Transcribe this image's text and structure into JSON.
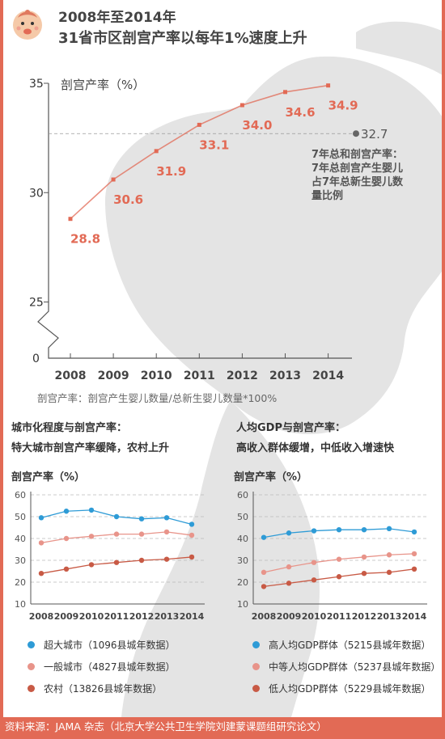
{
  "header": {
    "title_line1": "2008年至2014年",
    "title_line2": "31省市区剖宫产率以每年1%速度上升"
  },
  "colors": {
    "accent": "#e26a55",
    "blue": "#2e9bd6",
    "pink": "#e8948a",
    "dark_red": "#c85a45",
    "silhouette": "#e4e4e4"
  },
  "main_chart": {
    "footnote": "剖宫产率：剖宫产生婴儿数量/总新生婴儿数量*100%",
    "annotation": [
      "7年总和剖宫产率：",
      "7年总剖宫产生婴儿",
      "占7年总新生婴儿数",
      "量比例"
    ],
    "avg_label": "32.7"
  },
  "urban": {
    "title_line1": "城市化程度与剖宫产率：",
    "title_line2": "特大城市剖宫产率缓降，农村上升"
  },
  "income": {
    "title_line1": "人均GDP与剖宫产率：",
    "title_line2": "高收入群体缓增，中低收入增速快"
  },
  "footer": {
    "source": "资料来源：JAMA 杂志（北京大学公共卫生学院刘建蒙课题组研究论文）"
  },
  "chart_data": [
    {
      "type": "line",
      "ylabel": "剖宫产率（%）",
      "x": [
        "2008",
        "2009",
        "2010",
        "2011",
        "2012",
        "2013",
        "2014"
      ],
      "yticks": [
        "0",
        "25",
        "30",
        "35"
      ],
      "ylim": [
        25,
        35
      ],
      "axis_break": true,
      "series": [
        {
          "values": [
            28.8,
            30.6,
            31.9,
            33.1,
            34.0,
            34.6,
            34.9
          ]
        }
      ],
      "data_labels": [
        "28.8",
        "30.6",
        "31.9",
        "33.1",
        "34.0",
        "34.6",
        "34.9"
      ],
      "reference_line": {
        "value": 32.7,
        "label": "32.7"
      },
      "grid": false
    },
    {
      "type": "line",
      "ylabel": "剖宫产率（%）",
      "x": [
        "2008",
        "2009",
        "2010",
        "2011",
        "2012",
        "2013",
        "2014"
      ],
      "yticks": [
        "10",
        "20",
        "30",
        "40",
        "50",
        "60"
      ],
      "ylim": [
        10,
        60
      ],
      "grid": true,
      "legend": "bottom",
      "series": [
        {
          "name": "超大城市（1096县城年数据）",
          "color": "#2e9bd6",
          "values": [
            49.5,
            52.5,
            53,
            50,
            49,
            49.5,
            46.5
          ]
        },
        {
          "name": "一般城市（4827县城年数据）",
          "color": "#e8948a",
          "values": [
            38,
            40,
            41,
            42,
            42,
            43,
            41.5
          ]
        },
        {
          "name": "农村（13826县城年数据）",
          "color": "#c85a45",
          "values": [
            24,
            26,
            28,
            29,
            30,
            30.5,
            31.5
          ]
        }
      ]
    },
    {
      "type": "line",
      "ylabel": "剖宫产率（%）",
      "x": [
        "2008",
        "2009",
        "2010",
        "2011",
        "2012",
        "2013",
        "2014"
      ],
      "yticks": [
        "10",
        "20",
        "30",
        "40",
        "50",
        "60"
      ],
      "ylim": [
        10,
        60
      ],
      "grid": true,
      "legend": "bottom",
      "series": [
        {
          "name": "高人均GDP群体（5215县城年数据）",
          "color": "#2e9bd6",
          "values": [
            40.5,
            42.5,
            43.5,
            44,
            44,
            44.5,
            43
          ]
        },
        {
          "name": "中等人均GDP群体（5237县城年数据）",
          "color": "#e8948a",
          "values": [
            24.5,
            27,
            29,
            30.5,
            31.5,
            32.5,
            33
          ]
        },
        {
          "name": "低人均GDP群体（5229县城年数据）",
          "color": "#c85a45",
          "values": [
            18,
            19.5,
            21,
            22.5,
            24,
            24.5,
            26
          ]
        }
      ]
    }
  ]
}
